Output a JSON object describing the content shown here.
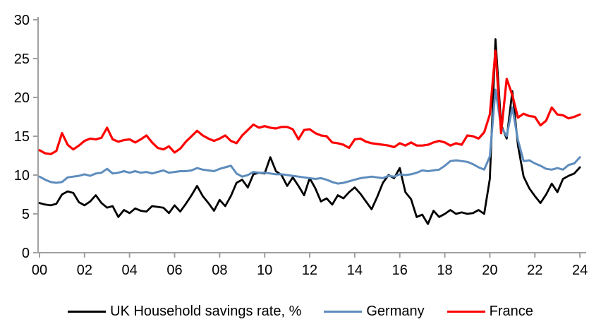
{
  "chart_data": {
    "type": "line",
    "title": "",
    "x_axis": {
      "tick_labels": [
        "00",
        "02",
        "04",
        "06",
        "08",
        "10",
        "12",
        "14",
        "16",
        "18",
        "20",
        "22",
        "24"
      ],
      "tick_years": [
        2000,
        2002,
        2004,
        2006,
        2008,
        2010,
        2012,
        2014,
        2016,
        2018,
        2020,
        2022,
        2024
      ],
      "xlim": [
        2000,
        2024.35
      ],
      "frequency": "quarterly",
      "x_start": 2000.0,
      "x_step": 0.25
    },
    "y_axis": {
      "tick_labels": [
        "0",
        "5",
        "10",
        "15",
        "20",
        "25",
        "30"
      ],
      "tick_values": [
        0,
        5,
        10,
        15,
        20,
        25,
        30
      ],
      "ylim": [
        0,
        30
      ]
    },
    "grid": false,
    "legend_position": "bottom",
    "axis_color": "#a0a0a0",
    "series": [
      {
        "name": "UK Household savings rate, %",
        "color": "#000000",
        "stroke_width": 2.8,
        "values": [
          6.4,
          6.2,
          6.1,
          6.3,
          7.5,
          7.9,
          7.7,
          6.5,
          6.1,
          6.6,
          7.4,
          6.4,
          5.8,
          6.0,
          4.6,
          5.5,
          5.1,
          5.7,
          5.4,
          5.3,
          6.0,
          5.9,
          5.8,
          5.1,
          6.1,
          5.3,
          6.3,
          7.4,
          8.6,
          7.3,
          6.4,
          5.4,
          6.8,
          6.0,
          7.3,
          9.0,
          9.4,
          8.4,
          10.1,
          10.3,
          10.2,
          12.3,
          10.5,
          10.0,
          8.6,
          9.7,
          8.6,
          7.4,
          9.6,
          8.3,
          6.6,
          7.0,
          6.2,
          7.4,
          7.0,
          7.8,
          8.4,
          7.6,
          6.6,
          5.6,
          7.2,
          9.0,
          10.0,
          9.6,
          10.9,
          7.8,
          6.9,
          4.6,
          4.9,
          3.7,
          5.4,
          4.6,
          5.0,
          5.5,
          5.0,
          5.2,
          5.0,
          5.1,
          5.5,
          5.0,
          9.5,
          27.5,
          16.5,
          14.7,
          20.8,
          13.8,
          9.8,
          8.3,
          7.3,
          6.4,
          7.5,
          8.9,
          7.8,
          9.5,
          9.9,
          10.2,
          11.0
        ]
      },
      {
        "name": "Germany",
        "color": "#5d8cbd",
        "stroke_width": 3.0,
        "values": [
          9.8,
          9.4,
          9.1,
          9.0,
          9.1,
          9.7,
          9.8,
          9.9,
          10.1,
          9.9,
          10.2,
          10.3,
          10.8,
          10.2,
          10.3,
          10.5,
          10.3,
          10.5,
          10.3,
          10.4,
          10.2,
          10.4,
          10.6,
          10.3,
          10.4,
          10.5,
          10.5,
          10.6,
          10.9,
          10.7,
          10.6,
          10.5,
          10.8,
          11.0,
          11.2,
          10.2,
          9.8,
          10.0,
          10.4,
          10.3,
          10.3,
          10.2,
          10.1,
          10.1,
          10.0,
          9.9,
          9.8,
          9.7,
          9.6,
          9.5,
          9.6,
          9.4,
          9.1,
          8.9,
          9.0,
          9.2,
          9.4,
          9.6,
          9.7,
          9.8,
          9.7,
          9.6,
          9.9,
          9.8,
          10.1,
          10.0,
          10.1,
          10.3,
          10.6,
          10.5,
          10.6,
          10.7,
          11.2,
          11.8,
          11.9,
          11.8,
          11.7,
          11.4,
          11.0,
          10.7,
          12.4,
          21.0,
          16.2,
          15.0,
          18.7,
          14.5,
          11.8,
          11.9,
          11.5,
          11.2,
          10.8,
          10.7,
          10.9,
          10.7,
          11.3,
          11.5,
          12.3
        ]
      },
      {
        "name": "France",
        "color": "#fe0000",
        "stroke_width": 3.2,
        "values": [
          13.2,
          12.8,
          12.7,
          13.1,
          15.4,
          13.9,
          13.3,
          13.8,
          14.4,
          14.7,
          14.6,
          14.8,
          16.1,
          14.6,
          14.3,
          14.5,
          14.6,
          14.2,
          14.6,
          15.1,
          14.2,
          13.5,
          13.3,
          13.7,
          12.9,
          13.4,
          14.3,
          15.0,
          15.7,
          15.1,
          14.7,
          14.4,
          14.7,
          15.1,
          14.4,
          14.1,
          15.1,
          15.8,
          16.5,
          16.1,
          16.3,
          16.1,
          16.0,
          16.2,
          16.2,
          15.9,
          14.6,
          15.8,
          15.9,
          15.4,
          15.1,
          15.0,
          14.2,
          14.1,
          13.9,
          13.5,
          14.6,
          14.7,
          14.3,
          14.1,
          14.0,
          13.9,
          13.8,
          13.6,
          14.1,
          13.8,
          14.2,
          13.8,
          13.8,
          13.9,
          14.2,
          14.4,
          14.2,
          13.8,
          14.1,
          13.9,
          15.1,
          15.0,
          14.7,
          15.5,
          17.8,
          26.0,
          15.4,
          22.4,
          20.3,
          17.4,
          17.9,
          17.6,
          17.5,
          16.4,
          17.0,
          18.7,
          17.8,
          17.7,
          17.3,
          17.5,
          17.8
        ]
      }
    ]
  }
}
